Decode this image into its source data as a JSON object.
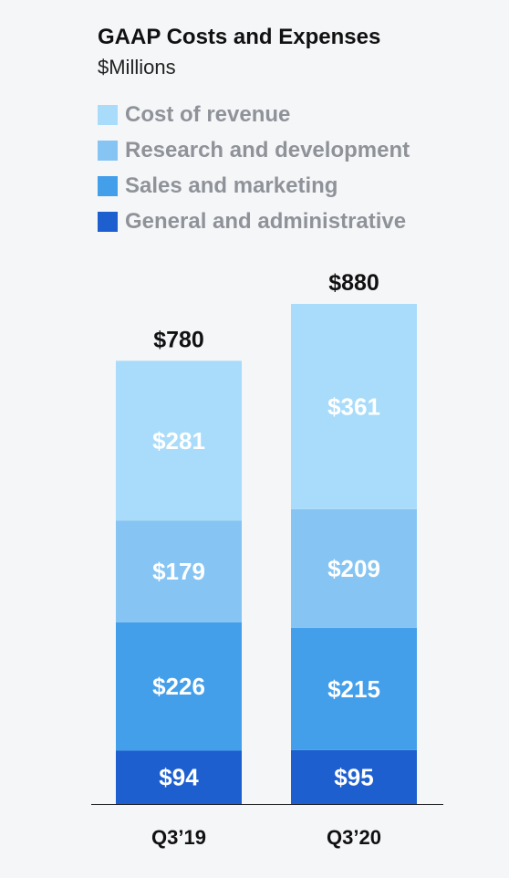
{
  "chart_data": {
    "type": "bar",
    "stacked": true,
    "title": "GAAP Costs and Expenses",
    "subtitle": "$Millions",
    "categories": [
      "Q3’19",
      "Q3’20"
    ],
    "totals": [
      "$780",
      "$880"
    ],
    "total_values": [
      780,
      880
    ],
    "series": [
      {
        "name": "General and administrative",
        "values": [
          94,
          95
        ],
        "labels": [
          "$94",
          "$95"
        ],
        "color": "#1d5fcf"
      },
      {
        "name": "Sales and marketing",
        "values": [
          226,
          215
        ],
        "labels": [
          "$226",
          "$215"
        ],
        "color": "#449fea"
      },
      {
        "name": "Research and development",
        "values": [
          179,
          209
        ],
        "labels": [
          "$179",
          "$209"
        ],
        "color": "#86c5f3"
      },
      {
        "name": "Cost of revenue",
        "values": [
          281,
          361
        ],
        "labels": [
          "$281",
          "$361"
        ],
        "color": "#a9dcfa"
      }
    ],
    "legend_order": [
      "Cost of revenue",
      "Research and development",
      "Sales and marketing",
      "General and administrative"
    ],
    "legend_position": "top-left",
    "ylim": [
      0,
      880
    ],
    "grid": false
  }
}
